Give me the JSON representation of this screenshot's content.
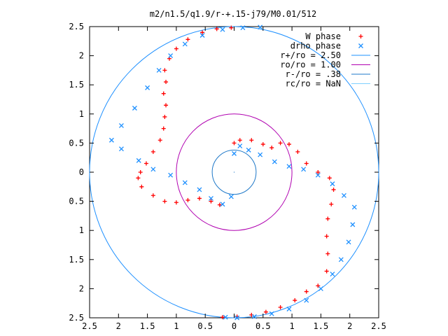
{
  "chart_data": {
    "type": "scatter",
    "title": "m2/n1.5/q1.9/r-+.15-j79/M0.01/512",
    "xlabel": "",
    "ylabel": "",
    "xlim": [
      -2.5,
      2.5
    ],
    "ylim": [
      -2.5,
      2.5
    ],
    "x_tick_values": [
      -2.5,
      -2,
      -1.5,
      -1,
      -0.5,
      0,
      0.5,
      1,
      1.5,
      2,
      2.5
    ],
    "x_tick_labels": [
      "2.5",
      "2",
      "1.5",
      "1",
      "0.5",
      "0",
      "0.5",
      "1",
      "1.5",
      "2",
      "2.5"
    ],
    "y_tick_values": [
      2.5,
      2,
      1.5,
      1,
      0.5,
      0,
      -0.5,
      -1,
      -1.5,
      -2,
      -2.5
    ],
    "y_tick_labels": [
      "2.5",
      "2",
      "1.5",
      "1",
      "0.5",
      "0",
      "0.5",
      "1",
      "1.5",
      "2",
      "2.5"
    ],
    "grid": false,
    "legend_position": "top-right",
    "series": [
      {
        "name": "W phase",
        "marker": "plus",
        "color": "#ff0000",
        "points": [
          [
            -0.05,
            2.48
          ],
          [
            -0.3,
            2.46
          ],
          [
            -0.55,
            2.4
          ],
          [
            -0.8,
            2.28
          ],
          [
            -1.0,
            2.12
          ],
          [
            -1.12,
            1.95
          ],
          [
            -1.2,
            1.75
          ],
          [
            -1.18,
            1.55
          ],
          [
            -1.22,
            1.35
          ],
          [
            -1.18,
            1.15
          ],
          [
            -1.2,
            0.95
          ],
          [
            -1.22,
            0.75
          ],
          [
            -1.28,
            0.55
          ],
          [
            -1.4,
            0.35
          ],
          [
            -1.52,
            0.15
          ],
          [
            -1.62,
            0.0
          ],
          [
            -1.66,
            -0.1
          ],
          [
            -1.6,
            -0.25
          ],
          [
            -1.4,
            -0.4
          ],
          [
            -1.2,
            -0.5
          ],
          [
            -1.0,
            -0.52
          ],
          [
            -0.8,
            -0.48
          ],
          [
            -0.6,
            -0.45
          ],
          [
            -0.4,
            -0.5
          ],
          [
            -0.25,
            -0.56
          ],
          [
            0.0,
            0.5
          ],
          [
            0.1,
            0.55
          ],
          [
            0.3,
            0.55
          ],
          [
            0.5,
            0.48
          ],
          [
            0.65,
            0.42
          ],
          [
            0.8,
            0.5
          ],
          [
            0.95,
            0.48
          ],
          [
            1.1,
            0.35
          ],
          [
            1.25,
            0.15
          ],
          [
            1.45,
            0.0
          ],
          [
            1.65,
            -0.1
          ],
          [
            1.72,
            -0.3
          ],
          [
            1.68,
            -0.55
          ],
          [
            1.62,
            -0.8
          ],
          [
            1.6,
            -1.1
          ],
          [
            1.62,
            -1.4
          ],
          [
            1.6,
            -1.7
          ],
          [
            1.45,
            -1.95
          ],
          [
            1.25,
            -2.05
          ],
          [
            1.05,
            -2.2
          ],
          [
            0.8,
            -2.32
          ],
          [
            0.55,
            -2.4
          ],
          [
            0.3,
            -2.45
          ],
          [
            0.05,
            -2.48
          ],
          [
            -0.2,
            -2.49
          ]
        ]
      },
      {
        "name": "drho phase",
        "marker": "x",
        "color": "#1e90ff",
        "points": [
          [
            0.45,
            2.49
          ],
          [
            0.15,
            2.48
          ],
          [
            -0.2,
            2.45
          ],
          [
            -0.55,
            2.35
          ],
          [
            -0.85,
            2.2
          ],
          [
            -1.1,
            2.0
          ],
          [
            -1.3,
            1.75
          ],
          [
            -1.5,
            1.45
          ],
          [
            -1.72,
            1.1
          ],
          [
            -1.95,
            0.8
          ],
          [
            -2.12,
            0.55
          ],
          [
            -1.95,
            0.4
          ],
          [
            -1.65,
            0.2
          ],
          [
            -1.4,
            0.05
          ],
          [
            -1.1,
            -0.05
          ],
          [
            -0.85,
            -0.18
          ],
          [
            -0.6,
            -0.3
          ],
          [
            -0.4,
            -0.45
          ],
          [
            -0.2,
            -0.55
          ],
          [
            -0.05,
            -0.42
          ],
          [
            0.0,
            0.32
          ],
          [
            0.1,
            0.45
          ],
          [
            0.25,
            0.38
          ],
          [
            0.45,
            0.3
          ],
          [
            0.7,
            0.18
          ],
          [
            0.95,
            0.1
          ],
          [
            1.2,
            0.05
          ],
          [
            1.45,
            -0.05
          ],
          [
            1.7,
            -0.2
          ],
          [
            1.9,
            -0.4
          ],
          [
            2.08,
            -0.6
          ],
          [
            2.05,
            -0.9
          ],
          [
            1.98,
            -1.2
          ],
          [
            1.85,
            -1.5
          ],
          [
            1.7,
            -1.75
          ],
          [
            1.5,
            -2.0
          ],
          [
            1.25,
            -2.2
          ],
          [
            0.95,
            -2.35
          ],
          [
            0.65,
            -2.43
          ],
          [
            0.35,
            -2.48
          ],
          [
            0.05,
            -2.5
          ],
          [
            -0.15,
            -2.49
          ]
        ]
      }
    ],
    "circles": [
      {
        "name": "r+/ro = 2.50",
        "r": 2.5,
        "color": "#1e90ff"
      },
      {
        "name": "ro/ro = 1.00",
        "r": 1.0,
        "color": "#b000b0"
      },
      {
        "name": "r-/ro = .38",
        "r": 0.38,
        "color": "#1e78c8"
      },
      {
        "name": "rc/ro = NaN",
        "r": null,
        "color": "#7fd0ff"
      }
    ]
  }
}
